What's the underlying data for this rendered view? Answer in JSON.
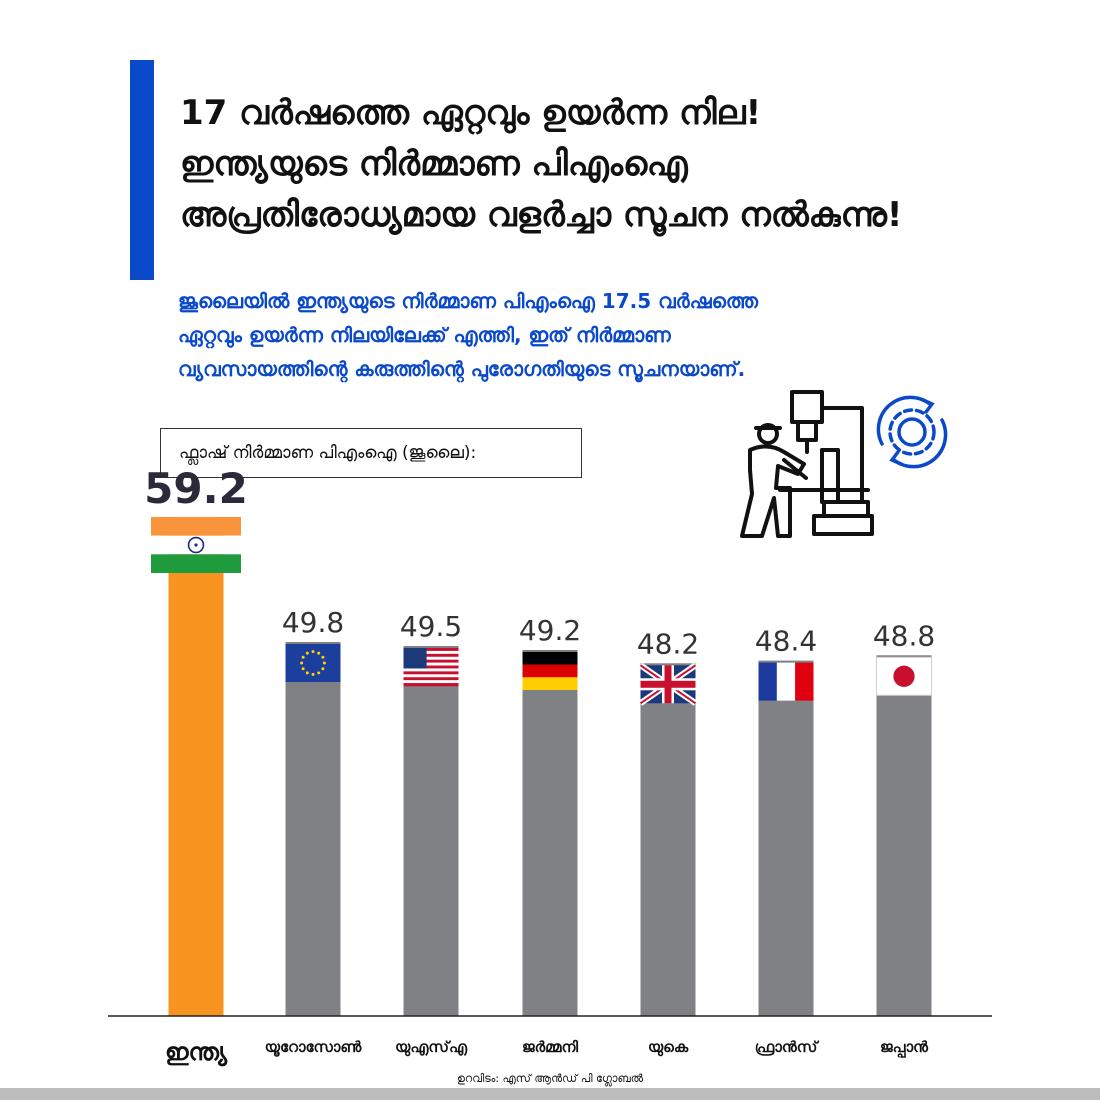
{
  "headline": {
    "line1": "17 വർഷത്തെ ഏറ്റവും ഉയർന്ന നില!",
    "line2": "ഇന്ത്യയുടെ നിർമ്മാണ പിഎംഐ",
    "line3": "അപ്രതിരോധ്യമായ വളർച്ചാ സൂചന നൽകുന്നു!"
  },
  "subtitle": {
    "line1": "ജൂലൈയിൽ ഇന്ത്യയുടെ നിർമ്മാണ പിഎംഐ  17.5 വർഷത്തെ",
    "line2": "ഏറ്റവും ഉയർന്ന നിലയിലേക്ക് എത്തി, ഇത് നിർമ്മാണ",
    "line3": "വ്യവസായത്തിന്റെ കരുത്തിന്റെ പുരോഗതിയുടെ സൂചനയാണ്."
  },
  "chart_label": "ഫ്ലാഷ് നിർമ്മാണ പിഎംഐ  (ജൂലൈ):",
  "source": "ഉറവിടം: എസ് ആൻഡ് പി ഗ്ലോബൽ",
  "colors": {
    "accent": "#0a49c9",
    "highlight_bar": "#f7931e",
    "other_bar": "#808184"
  },
  "icons": [
    "worker-machine-icon",
    "gear-cycle-icon"
  ],
  "chart_data": {
    "type": "bar",
    "categories": [
      "ഇന്ത്യ",
      "യൂറോസോൺ",
      "യുഎസ്എ",
      "ജർമ്മനി",
      "യുകെ",
      "ഫ്രാൻസ്",
      "ജപ്പാൻ"
    ],
    "values": [
      59.2,
      49.8,
      49.5,
      49.2,
      48.2,
      48.4,
      48.8
    ],
    "value_labels": [
      "59.2",
      "49.8",
      "49.5",
      "49.2",
      "48.2",
      "48.4",
      "48.8"
    ],
    "flags": [
      "india",
      "eurozone",
      "usa",
      "germany",
      "uk",
      "france",
      "japan"
    ],
    "highlight": 0
  }
}
